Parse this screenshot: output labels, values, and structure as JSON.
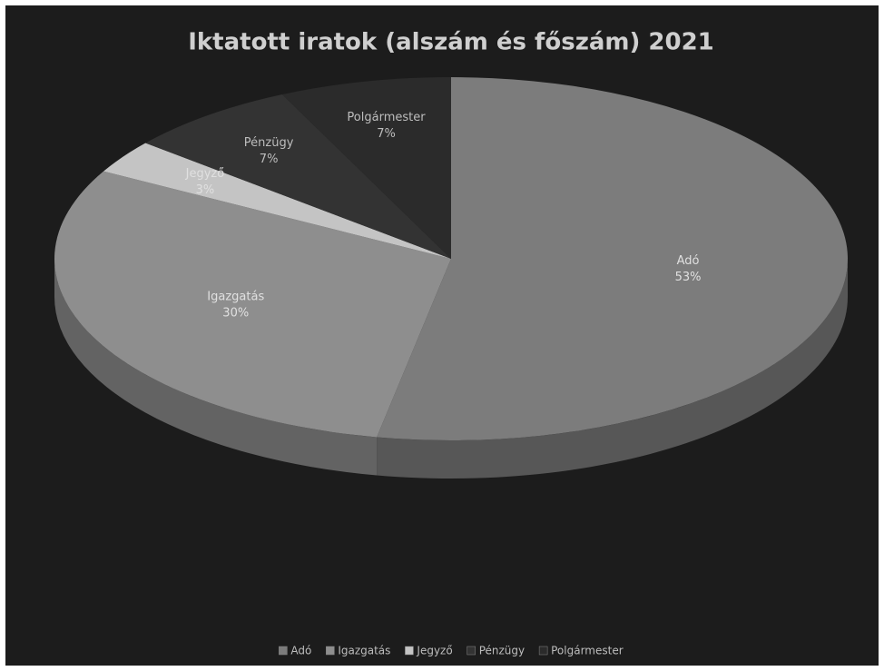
{
  "chart_data": {
    "type": "pie",
    "title": "Iktatott iratok (alszám és főszám) 2021",
    "categories": [
      "Adó",
      "Igazgatás",
      "Jegyző",
      "Pénzügy",
      "Polgármester"
    ],
    "values": [
      53,
      30,
      3,
      7,
      7
    ],
    "value_labels": [
      "53%",
      "30%",
      "3%",
      "7%",
      "7%"
    ],
    "colors": [
      "#7c7c7c",
      "#8e8e8e",
      "#c4c4c4",
      "#333333",
      "#2b2b2b"
    ],
    "legend": "bottom"
  }
}
